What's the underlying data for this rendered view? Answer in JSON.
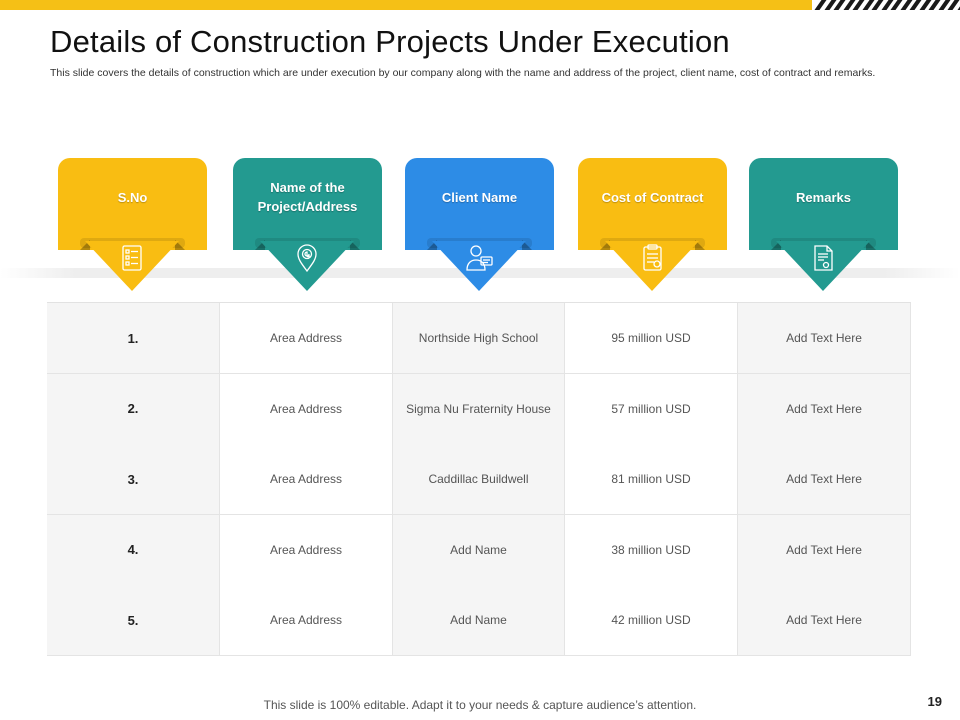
{
  "title": "Details of Construction Projects Under Execution",
  "subtitle": "This slide covers the details of construction which are under execution by our company along with the name and address of the project, client name, cost of contract and remarks.",
  "colors": {
    "yellow": "#f9bd12",
    "teal": "#239a90",
    "blue": "#2d8ce6",
    "accent_bar": "#f5c016"
  },
  "headers": [
    {
      "label": "S.No",
      "icon": "checklist-icon",
      "color": "#f9bd12"
    },
    {
      "label": "Name of the Project/Address",
      "icon": "location-pin-icon",
      "color": "#239a90"
    },
    {
      "label": "Client Name",
      "icon": "client-person-icon",
      "color": "#2d8ce6"
    },
    {
      "label": "Cost of Contract",
      "icon": "contract-document-icon",
      "color": "#f9bd12"
    },
    {
      "label": "Remarks",
      "icon": "certificate-icon",
      "color": "#239a90"
    }
  ],
  "rows": [
    {
      "sno": "1.",
      "project": "Area Address",
      "client": "Northside High School",
      "cost": "95 million USD",
      "remarks": "Add Text Here"
    },
    {
      "sno": "2.",
      "project": "Area Address",
      "client": "Sigma Nu Fraternity House",
      "cost": "57 million USD",
      "remarks": "Add Text Here"
    },
    {
      "sno": "3.",
      "project": "Area Address",
      "client": "Caddillac Buildwell",
      "cost": "81 million USD",
      "remarks": "Add Text Here"
    },
    {
      "sno": "4.",
      "project": "Area Address",
      "client": "Add Name",
      "cost": "38 million USD",
      "remarks": "Add Text Here"
    },
    {
      "sno": "5.",
      "project": "Area Address",
      "client": "Add Name",
      "cost": "42 million USD",
      "remarks": "Add Text Here"
    }
  ],
  "footer": "This slide is 100% editable. Adapt it to your needs & capture audience’s attention.",
  "page_number": "19"
}
